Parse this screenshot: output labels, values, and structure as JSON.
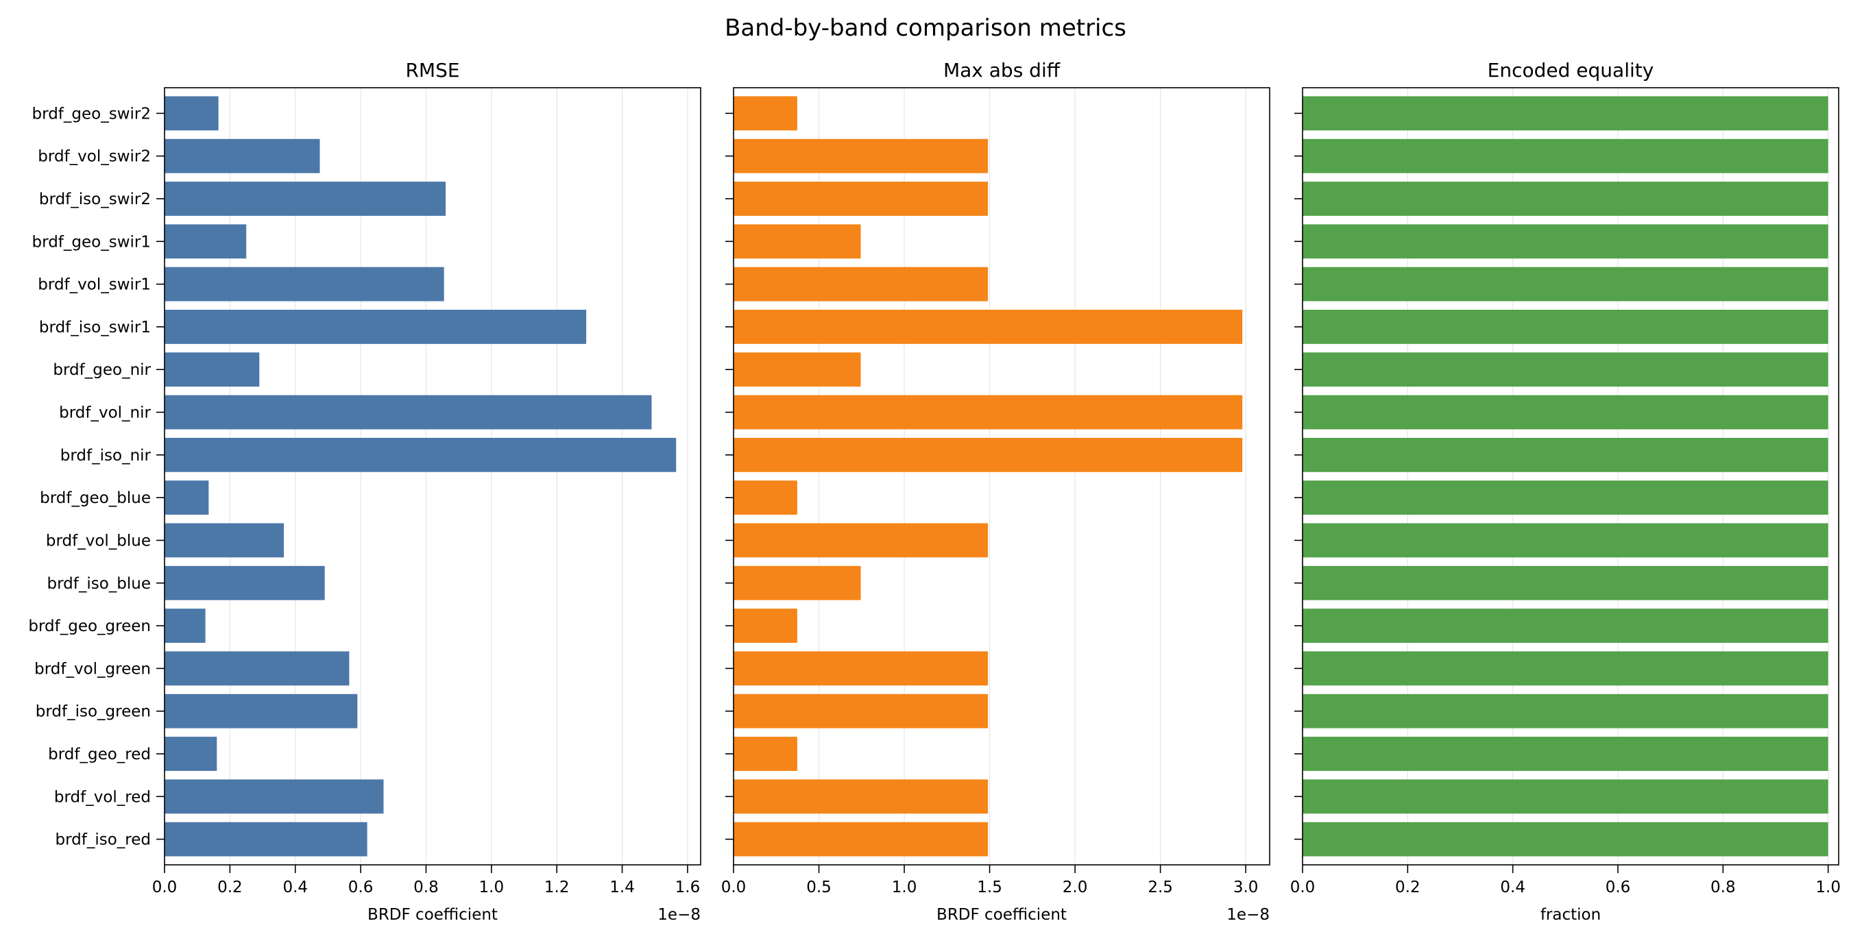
{
  "figure": {
    "title": "Band-by-band comparison metrics"
  },
  "bands": [
    "brdf_geo_swir2",
    "brdf_vol_swir2",
    "brdf_iso_swir2",
    "brdf_geo_swir1",
    "brdf_vol_swir1",
    "brdf_iso_swir1",
    "brdf_geo_nir",
    "brdf_vol_nir",
    "brdf_iso_nir",
    "brdf_geo_blue",
    "brdf_vol_blue",
    "brdf_iso_blue",
    "brdf_geo_green",
    "brdf_vol_green",
    "brdf_iso_green",
    "brdf_geo_red",
    "brdf_vol_red",
    "brdf_iso_red"
  ],
  "chart_data": [
    {
      "type": "bar",
      "orientation": "horizontal",
      "title": "RMSE",
      "xlabel": "BRDF coefficient",
      "ylabel": "",
      "offset_text": "1e−8",
      "scale": 1e-08,
      "xlim": [
        0,
        1.64
      ],
      "xticks": [
        0.0,
        0.2,
        0.4,
        0.6,
        0.8,
        1.0,
        1.2,
        1.4,
        1.6
      ],
      "xtick_labels": [
        "0.0",
        "0.2",
        "0.4",
        "0.6",
        "0.8",
        "1.0",
        "1.2",
        "1.4",
        "1.6"
      ],
      "grid": "vertical",
      "color": "#4c78a8",
      "show_category_labels": true,
      "values": [
        0.165,
        0.475,
        0.86,
        0.25,
        0.855,
        1.29,
        0.29,
        1.49,
        1.565,
        0.135,
        0.365,
        0.49,
        0.125,
        0.565,
        0.59,
        0.16,
        0.67,
        0.62
      ]
    },
    {
      "type": "bar",
      "orientation": "horizontal",
      "title": "Max abs diff",
      "xlabel": "BRDF coefficient",
      "ylabel": "",
      "offset_text": "1e−8",
      "scale": 1e-08,
      "xlim": [
        0,
        3.14
      ],
      "xticks": [
        0.0,
        0.5,
        1.0,
        1.5,
        2.0,
        2.5,
        3.0
      ],
      "xtick_labels": [
        "0.0",
        "0.5",
        "1.0",
        "1.5",
        "2.0",
        "2.5",
        "3.0"
      ],
      "grid": "vertical",
      "color": "#f58518",
      "show_category_labels": false,
      "values": [
        0.373,
        1.49,
        1.49,
        0.745,
        1.49,
        2.98,
        0.745,
        2.98,
        2.98,
        0.373,
        1.49,
        0.745,
        0.373,
        1.49,
        1.49,
        0.373,
        1.49,
        1.49
      ]
    },
    {
      "type": "bar",
      "orientation": "horizontal",
      "title": "Encoded equality",
      "xlabel": "fraction",
      "ylabel": "",
      "offset_text": "",
      "xlim": [
        0,
        1.02
      ],
      "xticks": [
        0.0,
        0.2,
        0.4,
        0.6,
        0.8,
        1.0
      ],
      "xtick_labels": [
        "0.0",
        "0.2",
        "0.4",
        "0.6",
        "0.8",
        "1.0"
      ],
      "grid": "vertical",
      "color": "#54a24b",
      "show_category_labels": false,
      "values": [
        1,
        1,
        1,
        1,
        1,
        1,
        1,
        1,
        1,
        1,
        1,
        1,
        1,
        1,
        1,
        1,
        1,
        1
      ]
    }
  ]
}
